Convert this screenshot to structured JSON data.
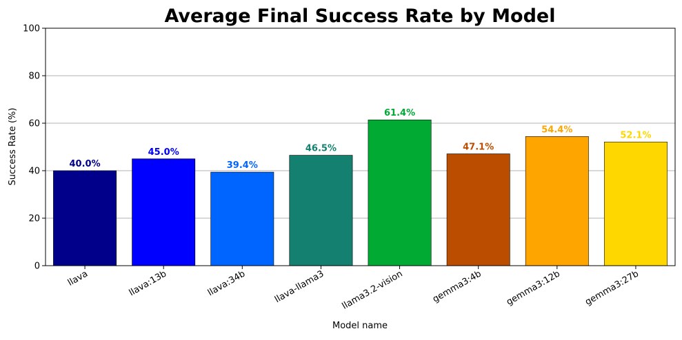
{
  "chart_data": {
    "type": "bar",
    "title": "Average Final Success Rate by Model",
    "xlabel": "Model name",
    "ylabel": "Success Rate (%)",
    "ylim": [
      0,
      100
    ],
    "yticks": [
      0,
      20,
      40,
      60,
      80,
      100
    ],
    "grid": "y-major",
    "categories": [
      "llava",
      "llava:13b",
      "llava:34b",
      "llava-llama3",
      "llama3.2-vision",
      "gemma3:4b",
      "gemma3:12b",
      "gemma3:27b"
    ],
    "values": [
      40.0,
      45.0,
      39.4,
      46.5,
      61.4,
      47.1,
      54.4,
      52.1
    ],
    "data_labels": [
      "40.0%",
      "45.0%",
      "39.4%",
      "46.5%",
      "61.4%",
      "47.1%",
      "54.4%",
      "52.1%"
    ],
    "colors": [
      "#00008b",
      "#0000ff",
      "#0064ff",
      "#138070",
      "#00aa33",
      "#bb4d00",
      "#ffa500",
      "#ffd700"
    ],
    "label_colors": [
      "#00008b",
      "#0000ff",
      "#0064ff",
      "#138070",
      "#00aa33",
      "#bb4d00",
      "#ffa500",
      "#ffd700"
    ],
    "edge_color": "#000000",
    "grid_color": "#b0b0b0",
    "xtick_rotation_deg": 30
  }
}
